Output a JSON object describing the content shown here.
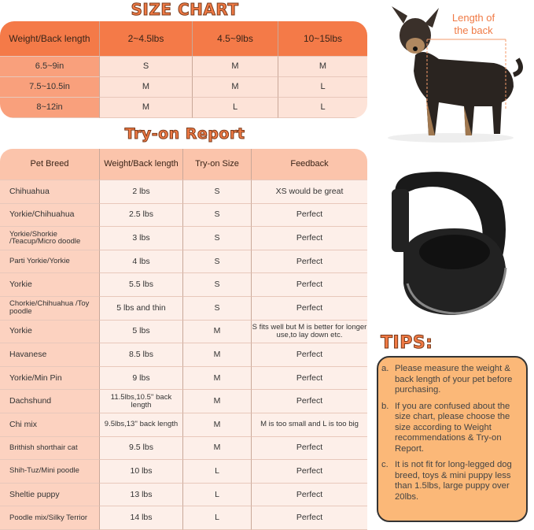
{
  "size_chart": {
    "title": "SIZE CHART",
    "headers": [
      "Weight/Back length",
      "2~4.5lbs",
      "4.5~9lbs",
      "10~15lbs"
    ],
    "rows": [
      [
        "6.5~9in",
        "S",
        "M",
        "M"
      ],
      [
        "7.5~10.5in",
        "M",
        "M",
        "L"
      ],
      [
        "8~12in",
        "M",
        "L",
        "L"
      ]
    ]
  },
  "try_on": {
    "title": "Try-on Report",
    "headers": [
      "Pet Breed",
      "Weight/Back length",
      "Try-on Size",
      "Feedback"
    ],
    "rows": [
      [
        "Chihuahua",
        "2 lbs",
        "S",
        "XS would be great"
      ],
      [
        "Yorkie/Chihuahua",
        "2.5 lbs",
        "S",
        "Perfect"
      ],
      [
        "Yorkie/Shorkie /Teacup/Micro doodle",
        "3 lbs",
        "S",
        "Perfect"
      ],
      [
        "Parti Yorkie/Yorkie",
        "4 lbs",
        "S",
        "Perfect"
      ],
      [
        "Yorkie",
        "5.5 lbs",
        "S",
        "Perfect"
      ],
      [
        "Chorkie/Chihuahua /Toy poodle",
        "5 lbs and thin",
        "S",
        "Perfect"
      ],
      [
        "Yorkie",
        "5 lbs",
        "M",
        "S fits well but M is better for longer use,to lay down etc."
      ],
      [
        "Havanese",
        "8.5 lbs",
        "M",
        "Perfect"
      ],
      [
        "Yorkie/Min Pin",
        "9 lbs",
        "M",
        "Perfect"
      ],
      [
        "Dachshund",
        "11.5lbs,10.5'' back length",
        "M",
        "Perfect"
      ],
      [
        "Chi mix",
        "9.5lbs,13'' back length",
        "M",
        "M is too small and L is too big"
      ],
      [
        "Brithish shorthair cat",
        "9.5 lbs",
        "M",
        "Perfect"
      ],
      [
        "Shih-Tuz/Mini poodle",
        "10 lbs",
        "L",
        "Perfect"
      ],
      [
        "Sheltie puppy",
        "13 lbs",
        "L",
        "Perfect"
      ],
      [
        "Poodle mix/Silky Terrior",
        "14 lbs",
        "L",
        "Perfect"
      ]
    ]
  },
  "dog_image": {
    "label": "Length of the back"
  },
  "tips": {
    "title": "TIPS:",
    "items": [
      {
        "letter": "a.",
        "text": "Please measure the weight & back length of your pet before purchasing."
      },
      {
        "letter": "b.",
        "text": "If you are confused about the size chart, please choose the size according to Weight recommendations & Try-on Report."
      },
      {
        "letter": "c.",
        "text": "It is not fit for long-legged dog breed, toys & mini puppy less than 1.5lbs, large puppy over 20lbs."
      }
    ]
  },
  "colors": {
    "header": "#f47a48",
    "accent": "#f07a45",
    "tips_bg": "#fbb878"
  }
}
